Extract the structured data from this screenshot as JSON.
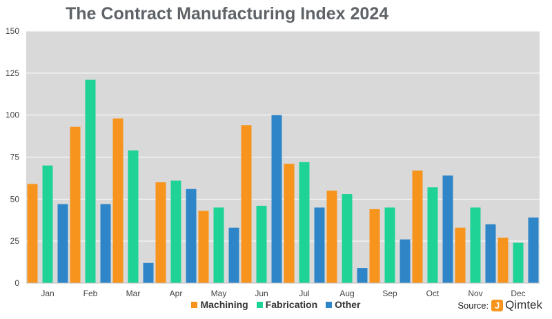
{
  "chart_data": {
    "type": "bar",
    "title": "The Contract Manufacturing Index 2024",
    "categories": [
      "Jan",
      "Feb",
      "Mar",
      "Apr",
      "May",
      "Jun",
      "Jul",
      "Aug",
      "Sep",
      "Oct",
      "Nov",
      "Dec"
    ],
    "series": [
      {
        "name": "Machining",
        "color": "#f7941d",
        "values": [
          59,
          93,
          98,
          60,
          43,
          94,
          71,
          55,
          44,
          67,
          33,
          27
        ]
      },
      {
        "name": "Fabrication",
        "color": "#1ed395",
        "values": [
          70,
          121,
          79,
          61,
          45,
          46,
          72,
          53,
          45,
          57,
          45,
          24
        ]
      },
      {
        "name": "Other",
        "color": "#2e86c8",
        "values": [
          47,
          47,
          12,
          56,
          33,
          100,
          45,
          9,
          26,
          64,
          35,
          39
        ]
      }
    ],
    "xlabel": "",
    "ylabel": "",
    "ylim": [
      0,
      150
    ],
    "yticks": [
      0,
      25,
      50,
      75,
      100,
      125,
      150
    ],
    "grid": true,
    "legend_position": "bottom"
  },
  "source": {
    "label": "Source:",
    "logo_mark": "J",
    "brand": "Qimtek"
  }
}
